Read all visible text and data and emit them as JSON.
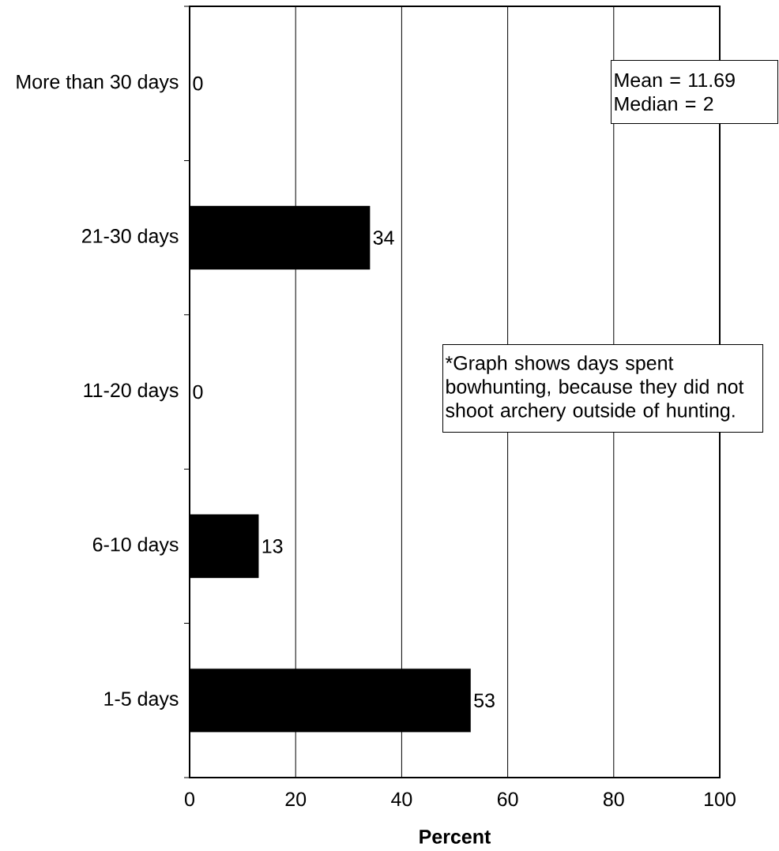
{
  "chart_data": {
    "type": "bar",
    "orientation": "horizontal",
    "categories": [
      "More than 30 days",
      "21-30 days",
      "11-20 days",
      "6-10 days",
      "1-5 days"
    ],
    "values": [
      0,
      34,
      0,
      13,
      53
    ],
    "color": "#000000",
    "xlim": [
      0,
      100
    ],
    "xticks": [
      0,
      20,
      40,
      60,
      80,
      100
    ],
    "xlabel": "Percent",
    "grid": "x",
    "data_labels": true,
    "annotations": [
      "Mean = 11.69",
      "Median = 2",
      "*Graph shows days spent bowhunting, because they did not shoot archery outside of hunting."
    ]
  }
}
